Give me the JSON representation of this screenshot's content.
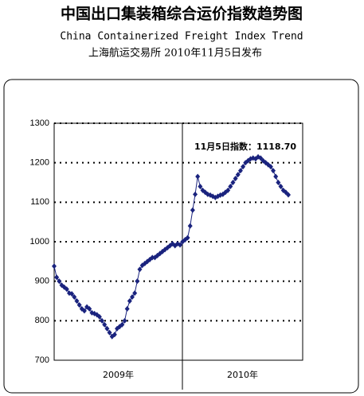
{
  "chart_data": {
    "type": "line",
    "title": "中国出口集装箱综合运价指数趋势图",
    "subtitle": "China Containerized Freight Index Trend",
    "source": "上海航运交易所  2010年11月5日发布",
    "annotation": "11月5日指数：1118.70",
    "x_labels": [
      "2009年",
      "2010年"
    ],
    "ylim": [
      700,
      1300
    ],
    "yticks": [
      700,
      800,
      900,
      1000,
      1100,
      1200,
      1300
    ],
    "grid": true,
    "series": [
      {
        "color": "#1a237e",
        "values": [
          938,
          910,
          900,
          890,
          885,
          880,
          870,
          868,
          860,
          850,
          840,
          830,
          825,
          835,
          830,
          820,
          818,
          815,
          810,
          800,
          790,
          780,
          770,
          760,
          765,
          780,
          785,
          790,
          800,
          830,
          850,
          860,
          870,
          900,
          930,
          940,
          945,
          950,
          955,
          960,
          960,
          965,
          970,
          975,
          980,
          985,
          990,
          995,
          990,
          995,
          992,
          1000,
          1005,
          1010,
          1040,
          1080,
          1120,
          1165,
          1140,
          1130,
          1125,
          1120,
          1118,
          1115,
          1112,
          1115,
          1118,
          1120,
          1125,
          1130,
          1140,
          1150,
          1160,
          1170,
          1180,
          1190,
          1200,
          1205,
          1210,
          1212,
          1210,
          1215,
          1212,
          1205,
          1200,
          1195,
          1190,
          1180,
          1165,
          1150,
          1140,
          1130,
          1125,
          1118.7
        ]
      }
    ]
  }
}
